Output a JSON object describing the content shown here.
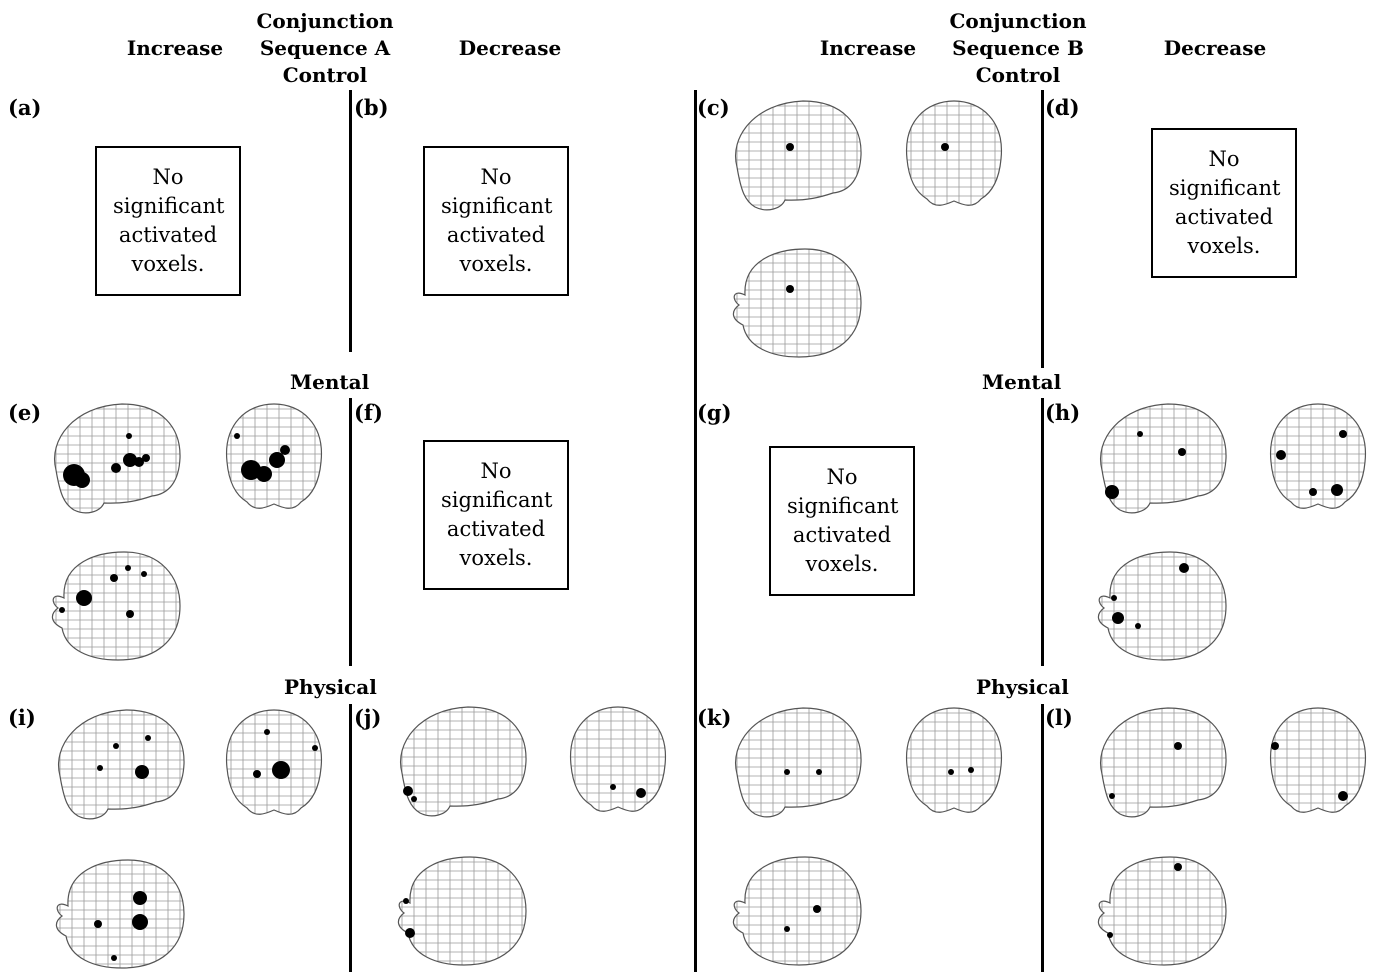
{
  "headers": {
    "seqA": {
      "increase": "Increase",
      "conjunction": [
        "Conjunction",
        "Sequence A",
        "Control"
      ],
      "decrease": "Decrease"
    },
    "seqB": {
      "increase": "Increase",
      "conjunction": [
        "Conjunction",
        "Sequence B",
        "Control"
      ],
      "decrease": "Decrease"
    }
  },
  "rows": {
    "mental": "Mental",
    "physical": "Physical"
  },
  "panels": [
    "(a)",
    "(b)",
    "(c)",
    "(d)",
    "(e)",
    "(f)",
    "(g)",
    "(h)",
    "(i)",
    "(j)",
    "(k)",
    "(l)"
  ],
  "no_voxels_text": "No significant activated voxels.",
  "colors": {
    "ink": "#000000",
    "grid": "#9a9a9a",
    "outline": "#555555"
  }
}
